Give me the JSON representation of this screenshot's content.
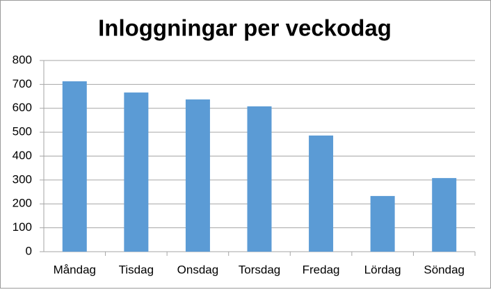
{
  "chart_data": {
    "type": "bar",
    "title": "Inloggningar per veckodag",
    "categories": [
      "Måndag",
      "Tisdag",
      "Onsdag",
      "Torsdag",
      "Fredag",
      "Lördag",
      "Söndag"
    ],
    "values": [
      713,
      666,
      637,
      608,
      486,
      233,
      308
    ],
    "color": "#5b9bd5",
    "ylim": [
      0,
      800
    ],
    "yticks": [
      0,
      100,
      200,
      300,
      400,
      500,
      600,
      700,
      800
    ],
    "grid": true
  }
}
